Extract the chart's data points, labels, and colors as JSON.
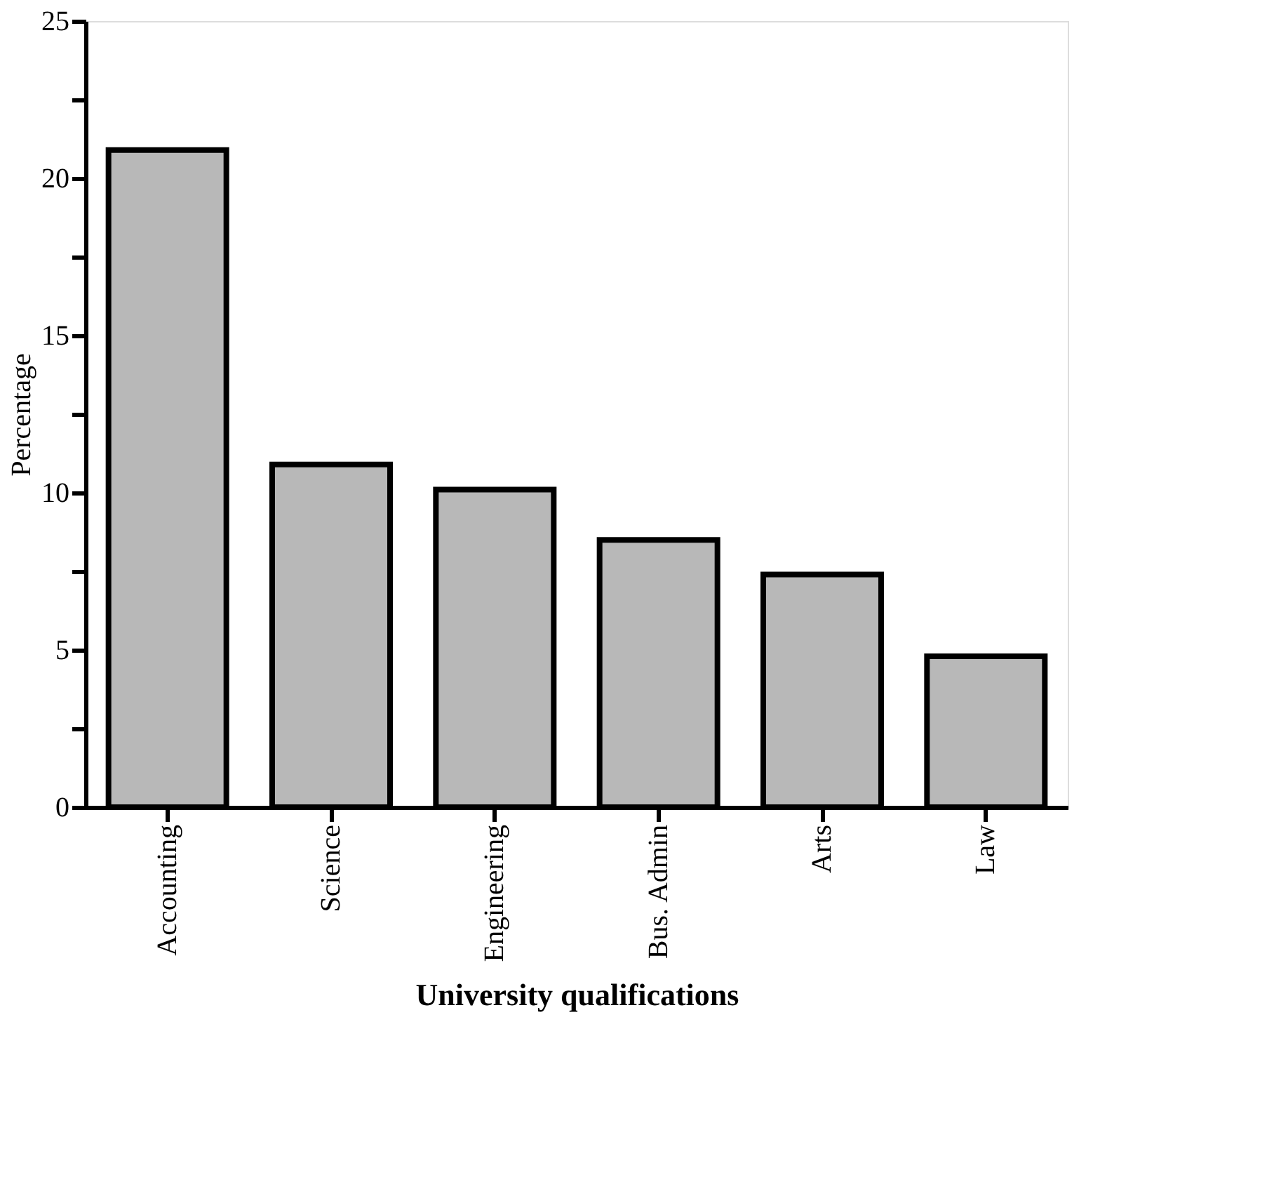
{
  "chart_data": {
    "type": "bar",
    "xlabel": "University qualifications",
    "ylabel": "Percentage",
    "categories": [
      "Accounting",
      "Science",
      "Engineering",
      "Bus. Admin",
      "Arts",
      "Law"
    ],
    "values": [
      20.9,
      10.9,
      10.1,
      8.5,
      7.4,
      4.8
    ],
    "color": "#b8b8b8",
    "ylim": [
      0,
      25
    ],
    "yticks": [
      0,
      {
        "value": 2.5,
        "label": null
      },
      5,
      {
        "value": 7.5,
        "label": null
      },
      10,
      {
        "value": 12.5,
        "label": null
      },
      15,
      {
        "value": 17.5,
        "label": null
      },
      20,
      {
        "value": 22.5,
        "label": null
      },
      25
    ],
    "grid": false
  }
}
